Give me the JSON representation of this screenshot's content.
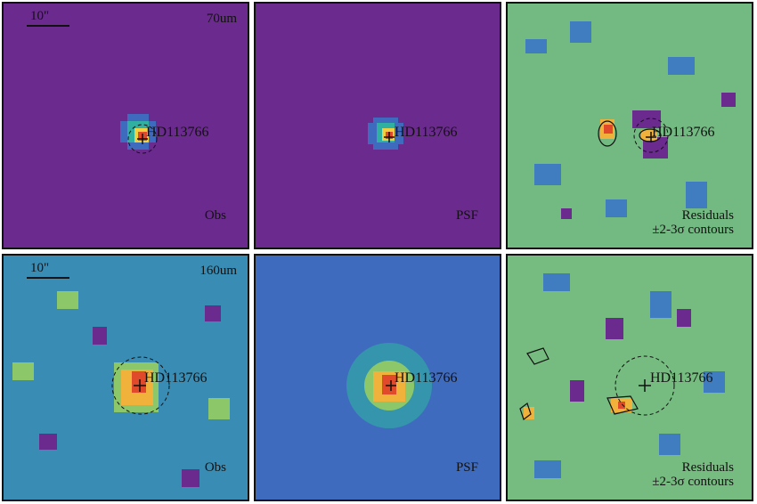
{
  "panels": {
    "p1": {
      "band": "70um",
      "kind": "Obs",
      "scale": "10\"",
      "star": "HD113766",
      "bg": "#6b2a8e"
    },
    "p2": {
      "kind": "PSF",
      "star": "HD113766",
      "bg": "#6b2a8e"
    },
    "p3": {
      "kind": "Residuals",
      "contours": "±2-3σ contours",
      "star": "HD113766"
    },
    "p4": {
      "band": "160um",
      "kind": "Obs",
      "scale": "10\"",
      "star": "HD113766"
    },
    "p5": {
      "kind": "PSF",
      "star": "HD113766",
      "bg": "#3f6bbf"
    },
    "p6": {
      "kind": "Residuals",
      "contours": "±2-3σ contours",
      "star": "HD113766"
    }
  },
  "colors": {
    "peak": "#e04a2a",
    "mid": "#f0b23a",
    "noise_green": "#8cc86a",
    "noise_blue": "#3f7cc0",
    "noise_purple": "#6b2a8e"
  }
}
